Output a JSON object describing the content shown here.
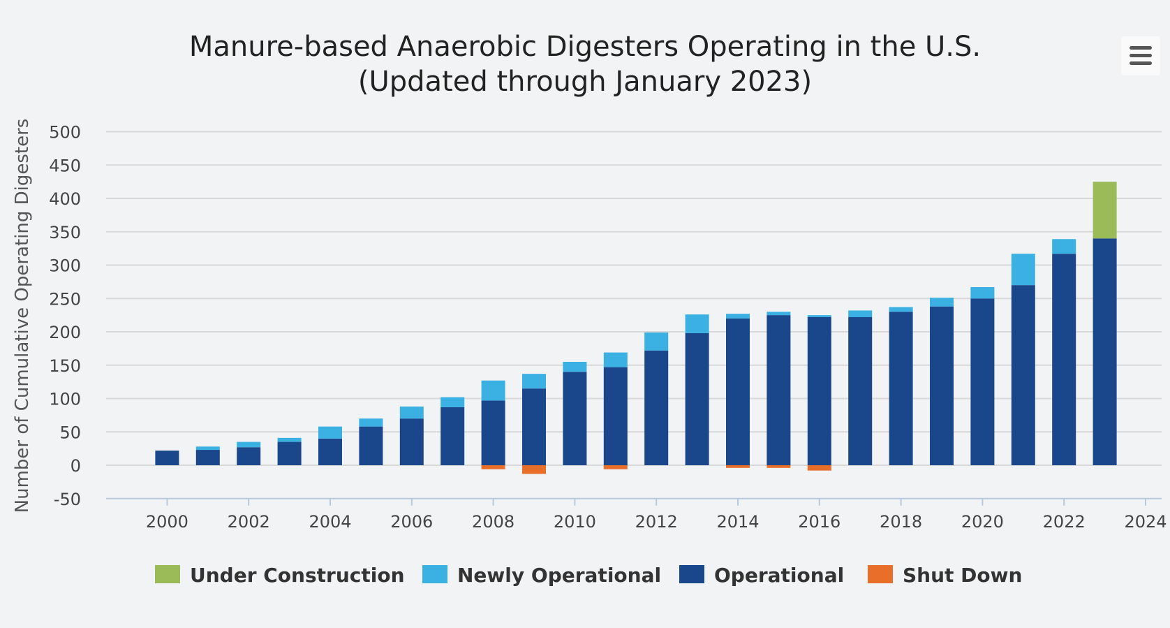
{
  "chart_data": {
    "type": "bar",
    "stacked": true,
    "title": "Manure-based Anaerobic Digesters Operating in the U.S.",
    "subtitle": "(Updated through January 2023)",
    "ylabel": "Number of Cumulative Operating Digesters",
    "xlabel": "",
    "ylim": [
      -50,
      500
    ],
    "yticks": [
      500,
      450,
      400,
      350,
      300,
      250,
      200,
      150,
      100,
      50,
      0,
      -50
    ],
    "xlim": [
      1999,
      2024
    ],
    "xticks": [
      2000,
      2002,
      2004,
      2006,
      2008,
      2010,
      2012,
      2014,
      2016,
      2018,
      2020,
      2022,
      2024
    ],
    "grid": true,
    "legend_position": "bottom",
    "x": [
      2000,
      2001,
      2002,
      2003,
      2004,
      2005,
      2006,
      2007,
      2008,
      2009,
      2010,
      2011,
      2012,
      2013,
      2014,
      2015,
      2016,
      2017,
      2018,
      2019,
      2020,
      2021,
      2022,
      2023
    ],
    "series": [
      {
        "name": "Under Construction",
        "color": "#9bbb59",
        "values": [
          0,
          0,
          0,
          0,
          0,
          0,
          0,
          0,
          0,
          0,
          0,
          0,
          0,
          0,
          0,
          0,
          0,
          0,
          0,
          0,
          0,
          0,
          0,
          85
        ]
      },
      {
        "name": "Newly Operational",
        "color": "#3ab0e3",
        "values": [
          0,
          5,
          8,
          6,
          18,
          12,
          18,
          15,
          30,
          22,
          15,
          22,
          27,
          28,
          7,
          5,
          3,
          10,
          7,
          13,
          17,
          47,
          22,
          0
        ]
      },
      {
        "name": "Operational",
        "color": "#1a468b",
        "values": [
          22,
          23,
          27,
          35,
          40,
          58,
          70,
          87,
          97,
          115,
          140,
          147,
          172,
          198,
          220,
          225,
          222,
          222,
          230,
          238,
          250,
          270,
          317,
          340
        ]
      },
      {
        "name": "Shut Down",
        "color": "#e86f2a",
        "values": [
          0,
          0,
          0,
          0,
          0,
          0,
          0,
          0,
          -6,
          -13,
          0,
          -6,
          0,
          0,
          -4,
          -4,
          -8,
          0,
          0,
          0,
          0,
          0,
          0,
          0
        ]
      }
    ]
  },
  "menu": {
    "icon": "hamburger-menu-icon"
  }
}
